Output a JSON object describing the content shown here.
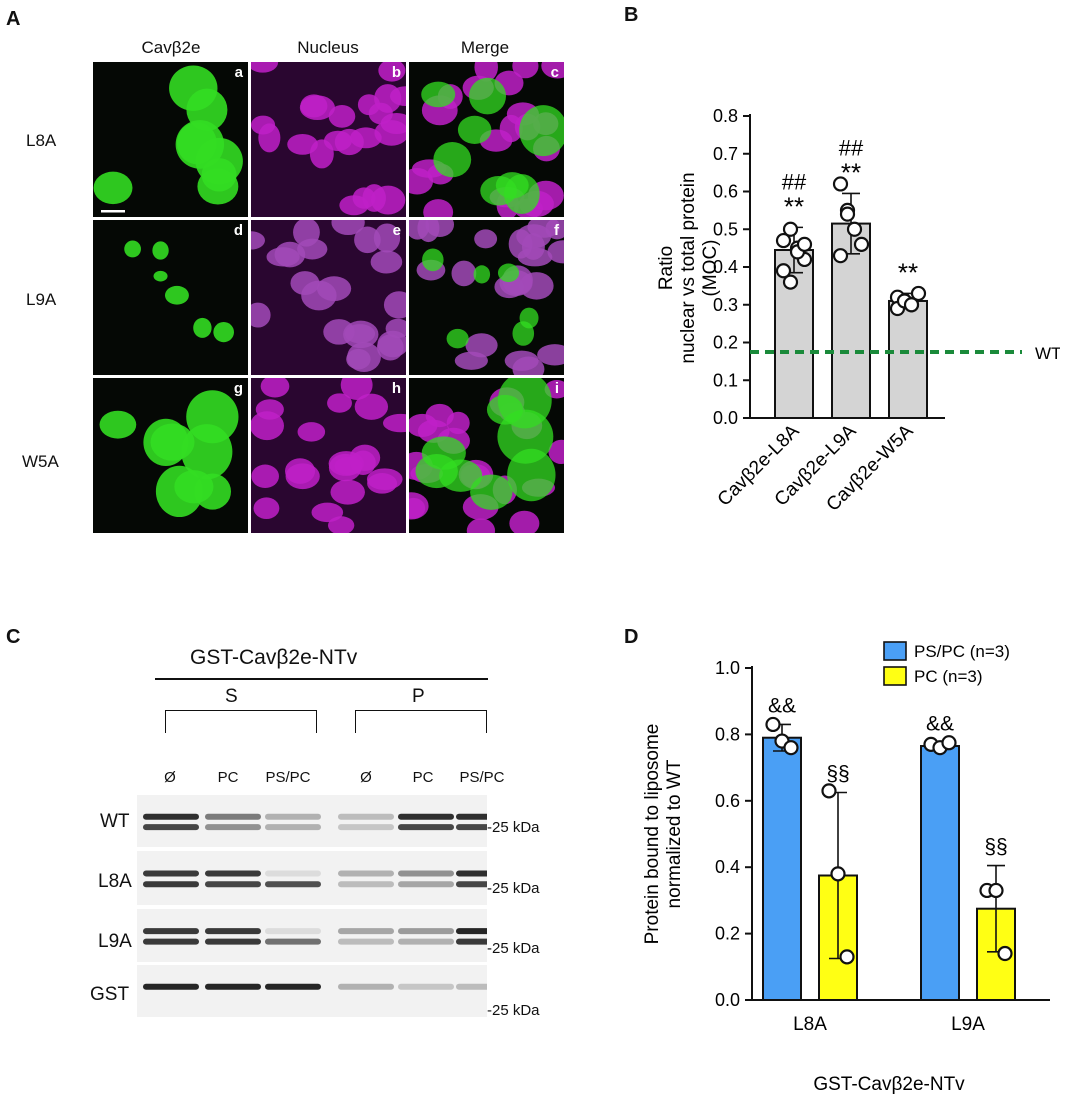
{
  "panels": {
    "A": "A",
    "B": "B",
    "C": "C",
    "D": "D"
  },
  "panelA": {
    "columns": [
      "Cavβ2e",
      "Nucleus",
      "Merge"
    ],
    "rows": [
      "L8A",
      "L9A",
      "W5A"
    ],
    "tile_letters": [
      "a",
      "b",
      "c",
      "d",
      "e",
      "f",
      "g",
      "h",
      "i"
    ],
    "colors": {
      "green": "#33dd22",
      "magenta": "#c020c8"
    }
  },
  "chart_b": {
    "type": "bar",
    "categories": [
      "Cavβ2e-L8A",
      "Cavβ2e-L9A",
      "Cavβ2e-W5A"
    ],
    "values": [
      0.445,
      0.515,
      0.31
    ],
    "errors": [
      0.06,
      0.08,
      0.02
    ],
    "points": [
      [
        0.47,
        0.5,
        0.45,
        0.42,
        0.39,
        0.36,
        0.44,
        0.46
      ],
      [
        0.62,
        0.55,
        0.5,
        0.46,
        0.43,
        0.54
      ],
      [
        0.32,
        0.31,
        0.3,
        0.33,
        0.29,
        0.31,
        0.3
      ]
    ],
    "annotations_top": [
      "##",
      "##",
      ""
    ],
    "annotations_sig": [
      "**",
      "**",
      "**"
    ],
    "ylabel": [
      "Ratio",
      "nuclear vs total protein",
      "(MOC)"
    ],
    "ylim": [
      0,
      0.8
    ],
    "yticks": [
      "0.0",
      "0.1",
      "0.2",
      "0.3",
      "0.4",
      "0.5",
      "0.6",
      "0.7",
      "0.8"
    ],
    "reference_line": {
      "label": "WT",
      "value": 0.175
    },
    "colors": {
      "bar": "#d4d4d4",
      "reference": "#1a8a3a"
    }
  },
  "panelC": {
    "title": "GST-Cavβ2e-NTv",
    "groups": [
      "S",
      "P"
    ],
    "lanes": [
      "Ø",
      "PC",
      "PS/PC",
      "Ø",
      "PC",
      "PS/PC"
    ],
    "rows": [
      "WT",
      "L8A",
      "L9A",
      "GST"
    ],
    "kda": [
      "-25 kDa",
      "-25 kDa",
      "-25 kDa",
      "-25 kDa"
    ]
  },
  "chart_d": {
    "type": "bar",
    "categories": [
      "L8A",
      "L9A"
    ],
    "series": [
      {
        "name": "PS/PC (n=3)",
        "values": [
          0.79,
          0.765
        ],
        "errors": [
          0.04,
          0.01
        ],
        "points": [
          [
            0.83,
            0.78,
            0.76
          ],
          [
            0.77,
            0.76,
            0.775
          ]
        ]
      },
      {
        "name": "PC (n=3)",
        "values": [
          0.375,
          0.275
        ],
        "errors": [
          0.25,
          0.13
        ],
        "points": [
          [
            0.63,
            0.38,
            0.13
          ],
          [
            0.33,
            0.33,
            0.14
          ]
        ]
      }
    ],
    "annotations": [
      [
        "&&",
        "§§"
      ],
      [
        "&&",
        "§§"
      ]
    ],
    "ylabel": [
      "Protein bound to liposome",
      "normalized to WT"
    ],
    "xlabel": "GST-Cavβ2e-NTv",
    "ylim": [
      0,
      1.0
    ],
    "yticks": [
      "0.0",
      "0.2",
      "0.4",
      "0.6",
      "0.8",
      "1.0"
    ],
    "legend_position": "top-right",
    "colors": {
      "pspc": "#4a9ff5",
      "pc": "#ffff14"
    }
  }
}
